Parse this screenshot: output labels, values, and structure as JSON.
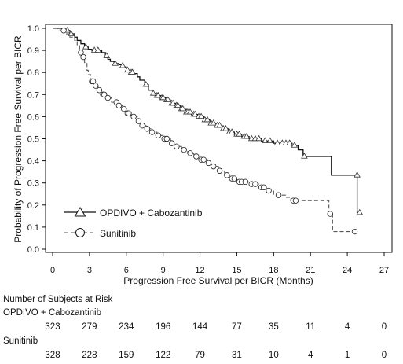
{
  "chart_data": {
    "type": "line",
    "subtype": "kaplan-meier",
    "xlabel": "Progression Free Survival per BICR (Months)",
    "ylabel": "Probability of Progression Free Survival per BICR",
    "xlim": [
      0,
      27
    ],
    "ylim": [
      0,
      1.0
    ],
    "xticks": [
      0,
      3,
      6,
      9,
      12,
      15,
      18,
      21,
      24,
      27
    ],
    "yticks": [
      0.0,
      0.1,
      0.2,
      0.3,
      0.4,
      0.5,
      0.6,
      0.7,
      0.8,
      0.9,
      1.0
    ],
    "grid": false,
    "legend_position": "bottom-left",
    "series": [
      {
        "name": "OPDIVO + Cabozantinib",
        "marker": "triangle",
        "line_style": "solid",
        "color": "#111111",
        "steps": [
          [
            0,
            1.0
          ],
          [
            0.8,
            0.99
          ],
          [
            1.4,
            0.975
          ],
          [
            1.8,
            0.96
          ],
          [
            2.0,
            0.945
          ],
          [
            2.3,
            0.93
          ],
          [
            2.6,
            0.915
          ],
          [
            2.9,
            0.905
          ],
          [
            3.2,
            0.9
          ],
          [
            4.0,
            0.89
          ],
          [
            4.3,
            0.875
          ],
          [
            4.5,
            0.86
          ],
          [
            4.7,
            0.85
          ],
          [
            5.0,
            0.84
          ],
          [
            5.4,
            0.835
          ],
          [
            5.6,
            0.83
          ],
          [
            5.8,
            0.825
          ],
          [
            6.0,
            0.81
          ],
          [
            6.3,
            0.8
          ],
          [
            6.6,
            0.795
          ],
          [
            6.9,
            0.78
          ],
          [
            7.1,
            0.765
          ],
          [
            7.5,
            0.745
          ],
          [
            7.8,
            0.72
          ],
          [
            8.1,
            0.705
          ],
          [
            8.4,
            0.695
          ],
          [
            8.8,
            0.685
          ],
          [
            9.2,
            0.675
          ],
          [
            9.6,
            0.66
          ],
          [
            10.0,
            0.65
          ],
          [
            10.4,
            0.635
          ],
          [
            10.8,
            0.62
          ],
          [
            11.3,
            0.61
          ],
          [
            11.8,
            0.6
          ],
          [
            12.3,
            0.585
          ],
          [
            12.8,
            0.57
          ],
          [
            13.3,
            0.56
          ],
          [
            13.8,
            0.545
          ],
          [
            14.3,
            0.53
          ],
          [
            14.8,
            0.52
          ],
          [
            15.4,
            0.51
          ],
          [
            16.0,
            0.5
          ],
          [
            17.0,
            0.49
          ],
          [
            18.0,
            0.48
          ],
          [
            19.5,
            0.47
          ],
          [
            20.0,
            0.45
          ],
          [
            20.4,
            0.42
          ],
          [
            22.7,
            0.335
          ],
          [
            24.8,
            0.165
          ]
        ],
        "end_x": 25.0,
        "censors": [
          [
            1.2,
            0.99
          ],
          [
            1.5,
            0.975
          ],
          [
            2.7,
            0.915
          ],
          [
            3.4,
            0.9
          ],
          [
            3.7,
            0.9
          ],
          [
            4.4,
            0.875
          ],
          [
            5.1,
            0.84
          ],
          [
            5.7,
            0.83
          ],
          [
            6.1,
            0.81
          ],
          [
            6.4,
            0.8
          ],
          [
            6.5,
            0.8
          ],
          [
            7.6,
            0.745
          ],
          [
            8.2,
            0.705
          ],
          [
            8.5,
            0.695
          ],
          [
            8.6,
            0.695
          ],
          [
            8.9,
            0.685
          ],
          [
            9.0,
            0.685
          ],
          [
            9.3,
            0.675
          ],
          [
            9.4,
            0.675
          ],
          [
            9.7,
            0.66
          ],
          [
            9.8,
            0.66
          ],
          [
            10.1,
            0.65
          ],
          [
            10.2,
            0.65
          ],
          [
            10.5,
            0.635
          ],
          [
            10.6,
            0.635
          ],
          [
            10.9,
            0.62
          ],
          [
            11.0,
            0.62
          ],
          [
            11.2,
            0.62
          ],
          [
            11.5,
            0.61
          ],
          [
            11.6,
            0.61
          ],
          [
            11.9,
            0.6
          ],
          [
            12.1,
            0.6
          ],
          [
            12.4,
            0.585
          ],
          [
            12.6,
            0.585
          ],
          [
            12.9,
            0.57
          ],
          [
            13.1,
            0.57
          ],
          [
            13.4,
            0.56
          ],
          [
            13.6,
            0.56
          ],
          [
            13.9,
            0.545
          ],
          [
            14.1,
            0.545
          ],
          [
            14.4,
            0.53
          ],
          [
            14.6,
            0.53
          ],
          [
            15.0,
            0.52
          ],
          [
            15.2,
            0.52
          ],
          [
            15.6,
            0.51
          ],
          [
            15.8,
            0.51
          ],
          [
            16.2,
            0.5
          ],
          [
            16.5,
            0.5
          ],
          [
            16.8,
            0.5
          ],
          [
            17.3,
            0.49
          ],
          [
            17.7,
            0.49
          ],
          [
            18.3,
            0.48
          ],
          [
            18.7,
            0.48
          ],
          [
            19.0,
            0.48
          ],
          [
            19.3,
            0.48
          ],
          [
            19.7,
            0.47
          ],
          [
            20.5,
            0.42
          ],
          [
            24.8,
            0.335
          ],
          [
            25.0,
            0.165
          ]
        ]
      },
      {
        "name": "Sunitinib",
        "marker": "circle",
        "line_style": "dashed",
        "color": "#555555",
        "steps": [
          [
            0,
            1.0
          ],
          [
            0.6,
            0.99
          ],
          [
            1.0,
            0.975
          ],
          [
            1.4,
            0.96
          ],
          [
            1.8,
            0.945
          ],
          [
            2.0,
            0.925
          ],
          [
            2.2,
            0.89
          ],
          [
            2.4,
            0.87
          ],
          [
            2.6,
            0.845
          ],
          [
            2.8,
            0.81
          ],
          [
            2.9,
            0.79
          ],
          [
            3.1,
            0.76
          ],
          [
            3.4,
            0.74
          ],
          [
            3.7,
            0.72
          ],
          [
            4.0,
            0.7
          ],
          [
            4.4,
            0.685
          ],
          [
            4.8,
            0.665
          ],
          [
            5.3,
            0.65
          ],
          [
            5.7,
            0.635
          ],
          [
            6.0,
            0.615
          ],
          [
            6.4,
            0.6
          ],
          [
            6.9,
            0.58
          ],
          [
            7.2,
            0.56
          ],
          [
            7.6,
            0.545
          ],
          [
            8.0,
            0.53
          ],
          [
            8.5,
            0.515
          ],
          [
            9.0,
            0.5
          ],
          [
            9.6,
            0.48
          ],
          [
            10.0,
            0.465
          ],
          [
            10.5,
            0.45
          ],
          [
            11.0,
            0.435
          ],
          [
            11.5,
            0.42
          ],
          [
            12.0,
            0.405
          ],
          [
            12.6,
            0.39
          ],
          [
            13.0,
            0.375
          ],
          [
            13.5,
            0.355
          ],
          [
            14.0,
            0.335
          ],
          [
            14.5,
            0.32
          ],
          [
            15.0,
            0.305
          ],
          [
            16.0,
            0.295
          ],
          [
            16.8,
            0.28
          ],
          [
            17.4,
            0.265
          ],
          [
            18.0,
            0.245
          ],
          [
            19.0,
            0.235
          ],
          [
            19.4,
            0.22
          ],
          [
            22.5,
            0.16
          ],
          [
            22.8,
            0.08
          ]
        ],
        "end_x": 24.6,
        "censors": [
          [
            0.9,
            0.99
          ],
          [
            2.3,
            0.89
          ],
          [
            2.5,
            0.87
          ],
          [
            3.2,
            0.76
          ],
          [
            3.3,
            0.76
          ],
          [
            3.5,
            0.74
          ],
          [
            3.8,
            0.72
          ],
          [
            4.1,
            0.7
          ],
          [
            4.2,
            0.7
          ],
          [
            4.5,
            0.685
          ],
          [
            5.2,
            0.665
          ],
          [
            5.4,
            0.65
          ],
          [
            5.8,
            0.635
          ],
          [
            6.1,
            0.615
          ],
          [
            6.2,
            0.615
          ],
          [
            6.6,
            0.6
          ],
          [
            7.0,
            0.58
          ],
          [
            7.3,
            0.56
          ],
          [
            7.7,
            0.545
          ],
          [
            8.1,
            0.53
          ],
          [
            8.6,
            0.515
          ],
          [
            9.1,
            0.5
          ],
          [
            9.3,
            0.5
          ],
          [
            9.7,
            0.48
          ],
          [
            10.1,
            0.465
          ],
          [
            10.7,
            0.45
          ],
          [
            11.2,
            0.435
          ],
          [
            11.7,
            0.42
          ],
          [
            12.1,
            0.405
          ],
          [
            12.3,
            0.405
          ],
          [
            12.7,
            0.39
          ],
          [
            13.1,
            0.375
          ],
          [
            13.6,
            0.355
          ],
          [
            14.2,
            0.335
          ],
          [
            14.6,
            0.32
          ],
          [
            14.8,
            0.32
          ],
          [
            15.2,
            0.305
          ],
          [
            15.4,
            0.305
          ],
          [
            15.7,
            0.305
          ],
          [
            16.2,
            0.295
          ],
          [
            16.5,
            0.295
          ],
          [
            17.0,
            0.28
          ],
          [
            17.2,
            0.28
          ],
          [
            17.6,
            0.265
          ],
          [
            18.4,
            0.245
          ],
          [
            19.6,
            0.22
          ],
          [
            19.8,
            0.22
          ],
          [
            22.6,
            0.16
          ],
          [
            24.6,
            0.08
          ]
        ]
      }
    ]
  },
  "risk_table": {
    "title": "Number of Subjects at Risk",
    "times": [
      0,
      3,
      6,
      9,
      12,
      15,
      18,
      21,
      24,
      27
    ],
    "groups": [
      {
        "label": "OPDIVO + Cabozantinib",
        "counts": [
          "323",
          "279",
          "234",
          "196",
          "144",
          "77",
          "35",
          "11",
          "4",
          "0"
        ]
      },
      {
        "label": "Sunitinib",
        "counts": [
          "328",
          "228",
          "159",
          "122",
          "79",
          "31",
          "10",
          "4",
          "1",
          "0"
        ]
      }
    ]
  }
}
